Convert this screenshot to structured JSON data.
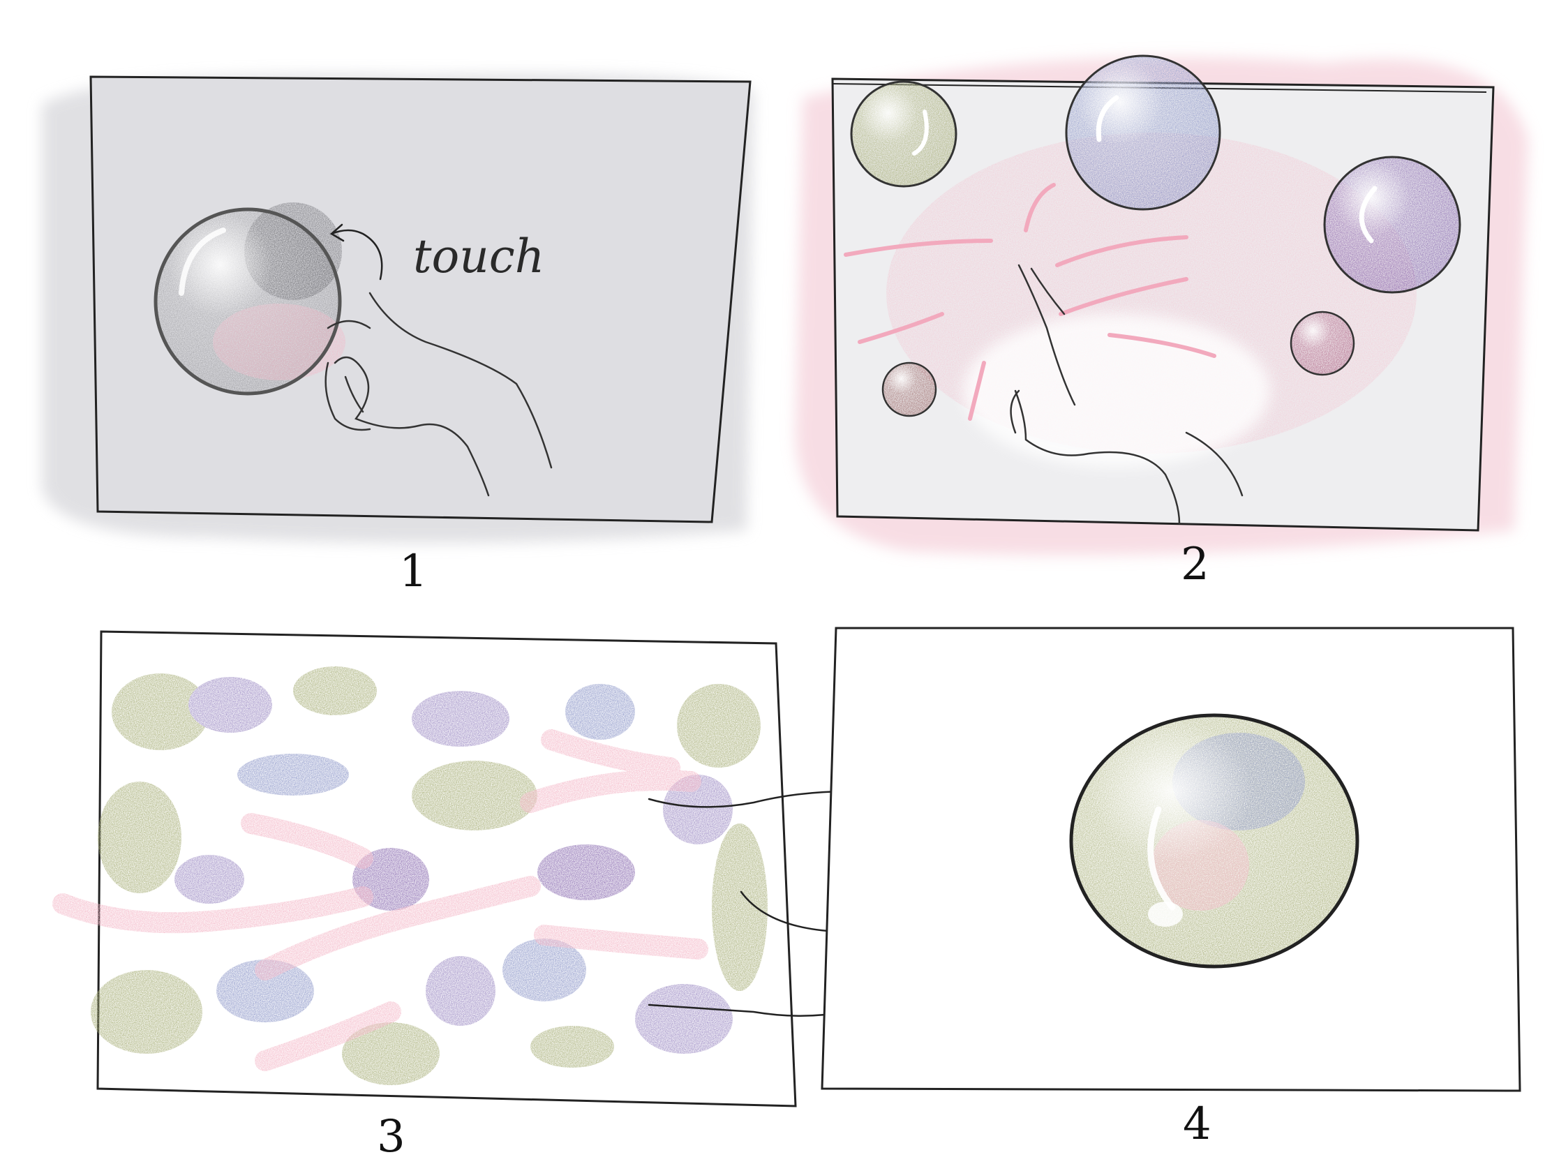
{
  "panel_numbers": [
    "1",
    "2",
    "3",
    "4"
  ],
  "annotation": "touch",
  "colors": {
    "panel_bg": "#dedee2",
    "stroke": "#222222",
    "pink": "#f4b8c8",
    "olive": "#a9b07a",
    "lavender": "#9d8cc4",
    "blue": "#8e98c9",
    "purple": "#8a6bb0",
    "brown": "#9c6b6b"
  },
  "icons": [
    "bubble",
    "hand",
    "arrow"
  ]
}
